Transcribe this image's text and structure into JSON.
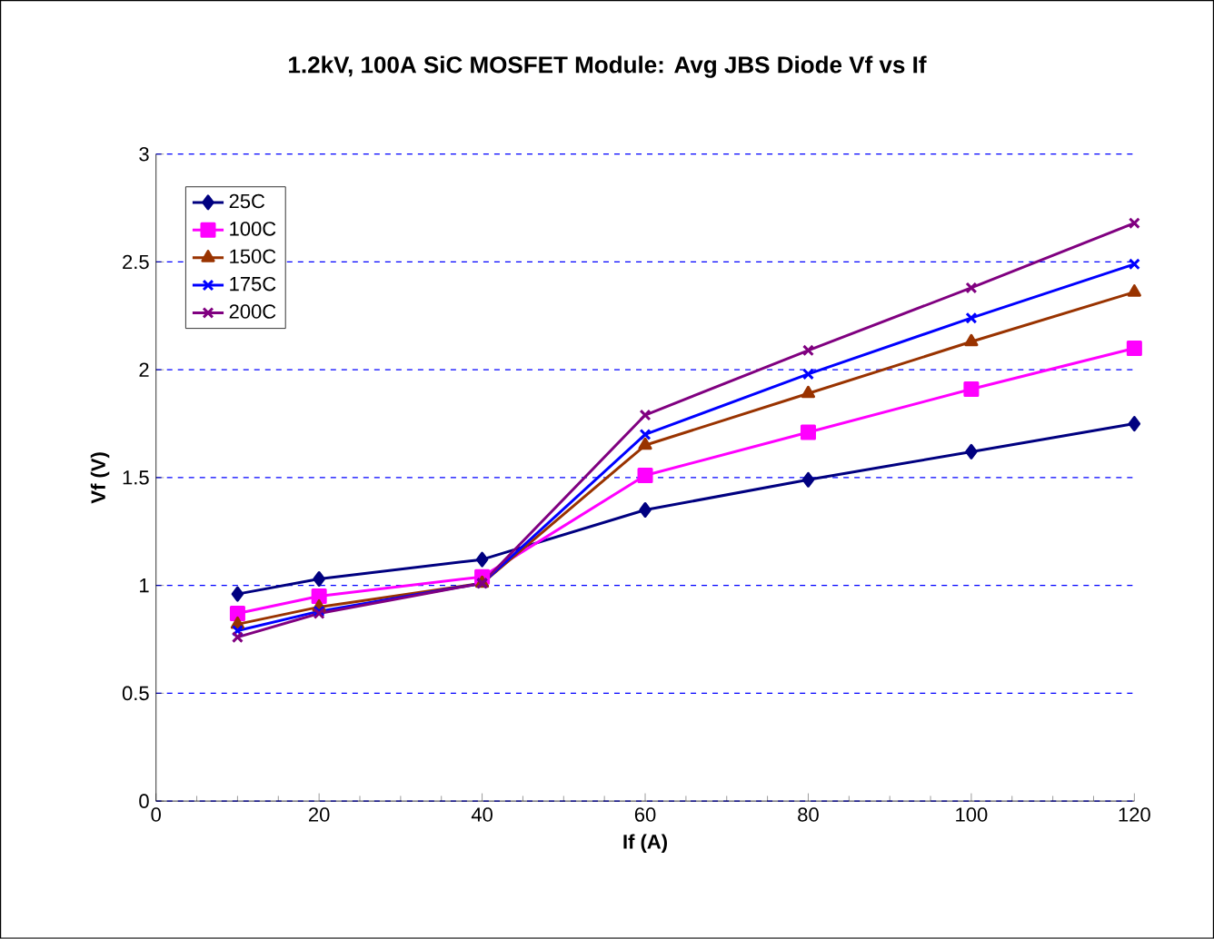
{
  "chart_data": {
    "type": "line",
    "title": "1.2kV, 100A SiC MOSFET Module:  Avg JBS Diode Vf vs If",
    "xlabel": "If (A)",
    "ylabel": "Vf (V)",
    "x": [
      10,
      20,
      40,
      60,
      80,
      100,
      120
    ],
    "series": [
      {
        "name": "25C",
        "color": "#000080",
        "marker": "diamond",
        "values": [
          0.96,
          1.03,
          1.12,
          1.35,
          1.49,
          1.62,
          1.75
        ]
      },
      {
        "name": "100C",
        "color": "#ff00ff",
        "marker": "square",
        "values": [
          0.87,
          0.95,
          1.04,
          1.51,
          1.71,
          1.91,
          2.1
        ]
      },
      {
        "name": "150C",
        "color": "#993300",
        "marker": "triangle",
        "values": [
          0.82,
          0.9,
          1.01,
          1.65,
          1.89,
          2.13,
          2.36
        ]
      },
      {
        "name": "175C",
        "color": "#0000ff",
        "marker": "cross",
        "values": [
          0.79,
          0.88,
          1.01,
          1.7,
          1.98,
          2.24,
          2.49
        ]
      },
      {
        "name": "200C",
        "color": "#800080",
        "marker": "cross",
        "values": [
          0.76,
          0.87,
          1.01,
          1.79,
          2.09,
          2.38,
          2.68
        ]
      }
    ],
    "xlim": [
      0,
      120
    ],
    "xticks": [
      0,
      20,
      40,
      60,
      80,
      100,
      120
    ],
    "ylim": [
      0,
      3
    ],
    "yticks": [
      0,
      0.5,
      1,
      1.5,
      2,
      2.5,
      3
    ],
    "grid": "y",
    "legend": "top left",
    "line_style": "solid"
  }
}
